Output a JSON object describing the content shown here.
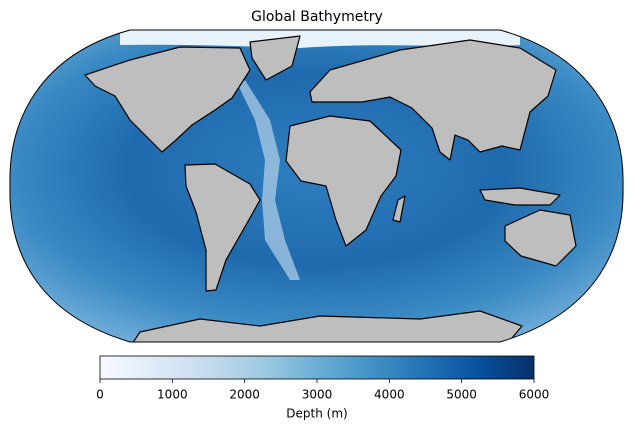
{
  "chart_data": {
    "type": "map",
    "title": "Global Bathymetry",
    "colorbar": {
      "label": "Depth (m)",
      "lim": [
        0,
        6000
      ],
      "ticks": [
        0,
        1000,
        2000,
        3000,
        4000,
        5000,
        6000
      ],
      "colors": [
        "#f7fbff",
        "#deebf7",
        "#c6dbef",
        "#9ecae1",
        "#6baed6",
        "#4292c6",
        "#2171b5",
        "#08519c",
        "#08306b"
      ]
    }
  }
}
